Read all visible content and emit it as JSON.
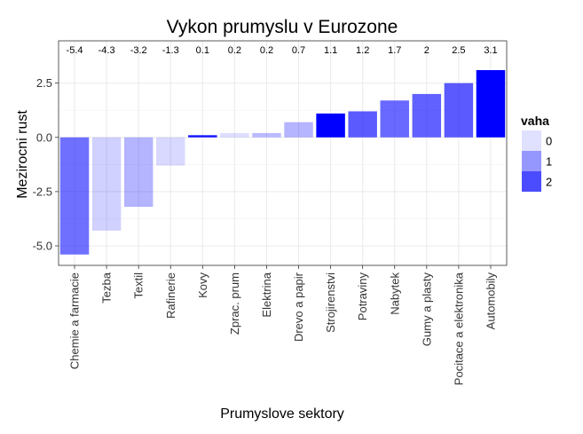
{
  "chart_data": {
    "type": "bar",
    "title": "Vykon prumyslu v Eurozone",
    "xlabel": "Prumyslove sektory",
    "ylabel": "Mezirocni rust",
    "categories": [
      "Chemie a farmacie",
      "Tezba",
      "Textil",
      "Rafinerie",
      "Kovy",
      "Zprac. prum",
      "Elektrina",
      "Drevo a papir",
      "Strojirenstvi",
      "Potraviny",
      "Nabytek",
      "Gumy a plasty",
      "Pocitace a elektronika",
      "Automobily"
    ],
    "values": [
      -5.4,
      -4.3,
      -3.2,
      -1.3,
      0.1,
      0.2,
      0.2,
      0.7,
      1.1,
      1.2,
      1.7,
      2,
      2.5,
      3.1
    ],
    "value_labels": [
      "-5.4",
      "-4.3",
      "-3.2",
      "-1.3",
      "0.1",
      "0.2",
      "0.2",
      "0.7",
      "1.1",
      "1.2",
      "1.7",
      "2",
      "2.5",
      "3.1"
    ],
    "vaha": [
      1.5,
      0.2,
      0.6,
      0.1,
      2.7,
      0.05,
      0.5,
      0.6,
      3.0,
      1.8,
      1.6,
      1.7,
      1.8,
      3.0
    ],
    "ylim": [
      -5.9,
      4.45
    ],
    "yticks": [
      -5,
      -2.5,
      0,
      2.5
    ],
    "ytick_labels": [
      "-5.0",
      "-2.5",
      "0.0",
      "2.5"
    ],
    "grid": true,
    "legend": {
      "title": "vaha",
      "position": "right",
      "entries": [
        "0",
        "1",
        "2"
      ]
    },
    "colors": {
      "fill": "#0000ff",
      "panel_border": "#333333",
      "grid": "#ebebeb"
    }
  }
}
